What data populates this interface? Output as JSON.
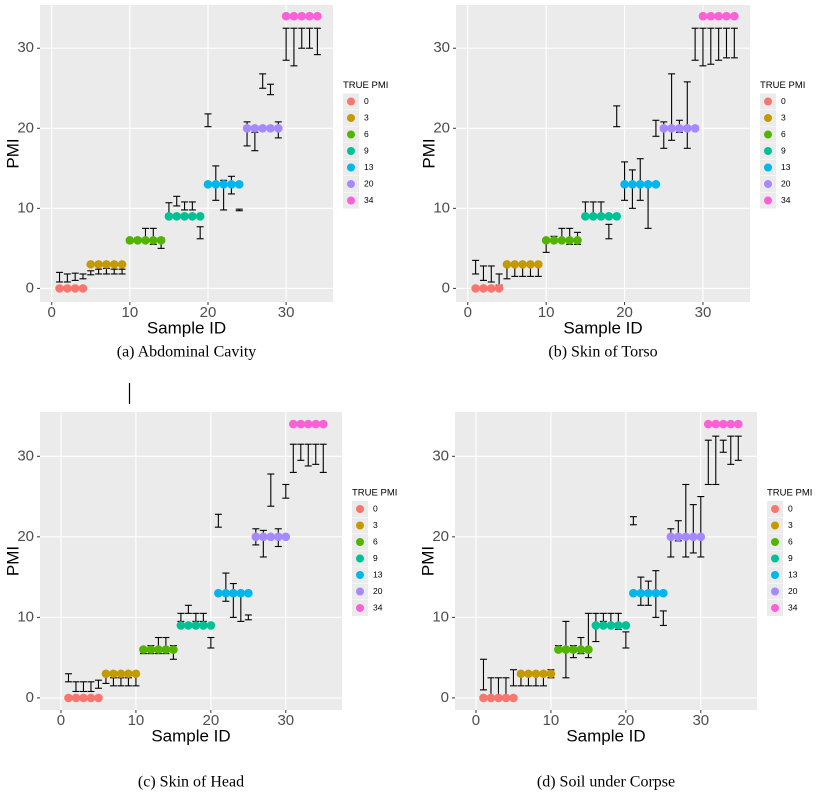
{
  "chart_data": [
    {
      "type": "errorbar-scatter",
      "caption": "(a) Abdominal Cavity",
      "xlabel": "Sample ID",
      "ylabel": "PMI",
      "legend_title": "TRUE PMI",
      "xlim": [
        -1.5,
        36
      ],
      "ylim": [
        -1.7,
        35.4
      ],
      "xticks": [
        0,
        10,
        20,
        30
      ],
      "yticks": [
        0,
        10,
        20,
        30
      ],
      "grid": true,
      "series": [
        {
          "name": "0",
          "color": "#F8766D",
          "x": [
            1,
            2,
            3,
            4
          ],
          "values": [
            0,
            0,
            0,
            0
          ]
        },
        {
          "name": "3",
          "color": "#C49A00",
          "x": [
            5,
            6,
            7,
            8,
            9
          ],
          "values": [
            3,
            3,
            3,
            3,
            3
          ]
        },
        {
          "name": "6",
          "color": "#53B400",
          "x": [
            10,
            11,
            12,
            13,
            14
          ],
          "values": [
            6,
            6,
            6,
            6,
            6
          ]
        },
        {
          "name": "9",
          "color": "#00C094",
          "x": [
            15,
            16,
            17,
            18,
            19
          ],
          "values": [
            9,
            9,
            9,
            9,
            9
          ]
        },
        {
          "name": "13",
          "color": "#00B6EB",
          "x": [
            20,
            21,
            22,
            23,
            24
          ],
          "values": [
            13,
            13,
            13,
            13,
            13
          ]
        },
        {
          "name": "20",
          "color": "#A58AFF",
          "x": [
            25,
            26,
            27,
            28,
            29
          ],
          "values": [
            20,
            20,
            20,
            20,
            20
          ]
        },
        {
          "name": "34",
          "color": "#FB61D7",
          "x": [
            30,
            31,
            32,
            33,
            34
          ],
          "values": [
            34,
            34,
            34,
            34,
            34
          ]
        }
      ],
      "errorbars": {
        "x": [
          1,
          2,
          3,
          4,
          5,
          6,
          7,
          8,
          9,
          10,
          11,
          12,
          13,
          14,
          15,
          16,
          17,
          18,
          19,
          20,
          21,
          22,
          23,
          24,
          25,
          26,
          27,
          28,
          29,
          30,
          31,
          32,
          33,
          34
        ],
        "low": [
          0.8,
          0.8,
          1.0,
          1.2,
          1.7,
          1.8,
          1.8,
          1.8,
          1.8,
          5.7,
          5.8,
          5.8,
          5.5,
          5.0,
          9.2,
          10.3,
          9.8,
          9.8,
          6.2,
          20.2,
          11.0,
          9.8,
          11.8,
          9.7,
          17.8,
          17.2,
          25.0,
          24.2,
          18.8,
          28.5,
          27.8,
          30.0,
          30.0,
          29.2
        ],
        "high": [
          2.0,
          1.8,
          1.9,
          1.8,
          2.2,
          2.4,
          2.5,
          2.4,
          2.4,
          6.2,
          6.3,
          7.5,
          7.5,
          6.3,
          10.7,
          11.5,
          10.8,
          10.8,
          7.7,
          21.8,
          15.3,
          13.5,
          14.0,
          9.9,
          20.8,
          19.5,
          26.8,
          25.5,
          20.8,
          32.5,
          32.5,
          32.5,
          32.5,
          32.5
        ]
      }
    },
    {
      "type": "errorbar-scatter",
      "caption": "(b) Skin of Torso",
      "xlabel": "Sample ID",
      "ylabel": "PMI",
      "legend_title": "TRUE PMI",
      "xlim": [
        -1.5,
        36
      ],
      "ylim": [
        -1.7,
        35.4
      ],
      "xticks": [
        0,
        10,
        20,
        30
      ],
      "yticks": [
        0,
        10,
        20,
        30
      ],
      "grid": true,
      "series": [
        {
          "name": "0",
          "color": "#F8766D",
          "x": [
            1,
            2,
            3,
            4
          ],
          "values": [
            0,
            0,
            0,
            0
          ]
        },
        {
          "name": "3",
          "color": "#C49A00",
          "x": [
            5,
            6,
            7,
            8,
            9
          ],
          "values": [
            3,
            3,
            3,
            3,
            3
          ]
        },
        {
          "name": "6",
          "color": "#53B400",
          "x": [
            10,
            11,
            12,
            13,
            14
          ],
          "values": [
            6,
            6,
            6,
            6,
            6
          ]
        },
        {
          "name": "9",
          "color": "#00C094",
          "x": [
            15,
            16,
            17,
            18,
            19
          ],
          "values": [
            9,
            9,
            9,
            9,
            9
          ]
        },
        {
          "name": "13",
          "color": "#00B6EB",
          "x": [
            20,
            21,
            22,
            23,
            24
          ],
          "values": [
            13,
            13,
            13,
            13,
            13
          ]
        },
        {
          "name": "20",
          "color": "#A58AFF",
          "x": [
            25,
            26,
            27,
            28,
            29
          ],
          "values": [
            20,
            20,
            20,
            20,
            20
          ]
        },
        {
          "name": "34",
          "color": "#FB61D7",
          "x": [
            30,
            31,
            32,
            33,
            34
          ],
          "values": [
            34,
            34,
            34,
            34,
            34
          ]
        }
      ],
      "errorbars": {
        "x": [
          1,
          2,
          3,
          4,
          5,
          6,
          7,
          8,
          9,
          10,
          11,
          12,
          13,
          14,
          15,
          16,
          17,
          18,
          19,
          20,
          21,
          22,
          23,
          24,
          25,
          26,
          27,
          28,
          29,
          30,
          31,
          32,
          33,
          34
        ],
        "low": [
          1.8,
          1.0,
          0.8,
          0.4,
          1.2,
          1.5,
          1.5,
          1.5,
          1.5,
          4.5,
          5.8,
          5.8,
          5.5,
          5.5,
          8.8,
          9.0,
          8.8,
          6.2,
          20.2,
          11.0,
          10.0,
          11.0,
          7.5,
          19.0,
          17.5,
          18.5,
          19.5,
          17.5,
          28.5,
          27.8,
          28.0,
          28.5,
          28.8,
          28.8
        ],
        "high": [
          3.5,
          2.8,
          2.8,
          1.8,
          3.0,
          3.2,
          3.0,
          3.0,
          3.0,
          6.2,
          6.5,
          7.5,
          7.5,
          7.0,
          10.8,
          10.8,
          10.8,
          8.0,
          22.8,
          15.8,
          14.8,
          16.2,
          13.0,
          21.0,
          20.8,
          26.8,
          21.0,
          25.8,
          32.5,
          32.5,
          32.5,
          32.5,
          32.5,
          32.5
        ]
      }
    },
    {
      "type": "errorbar-scatter",
      "caption": "(c) Skin of Head",
      "xlabel": "Sample ID",
      "ylabel": "PMI",
      "legend_title": "TRUE PMI",
      "xlim": [
        -2.8,
        37.5
      ],
      "ylim": [
        -1.5,
        35.5
      ],
      "xticks": [
        0,
        10,
        20,
        30
      ],
      "yticks": [
        0,
        10,
        20,
        30
      ],
      "grid": true,
      "series": [
        {
          "name": "0",
          "color": "#F8766D",
          "x": [
            1,
            2,
            3,
            4,
            5
          ],
          "values": [
            0,
            0,
            0,
            0,
            0
          ]
        },
        {
          "name": "3",
          "color": "#C49A00",
          "x": [
            6,
            7,
            8,
            9,
            10
          ],
          "values": [
            3,
            3,
            3,
            3,
            3
          ]
        },
        {
          "name": "6",
          "color": "#53B400",
          "x": [
            11,
            12,
            13,
            14,
            15
          ],
          "values": [
            6,
            6,
            6,
            6,
            6
          ]
        },
        {
          "name": "9",
          "color": "#00C094",
          "x": [
            16,
            17,
            18,
            19,
            20
          ],
          "values": [
            9,
            9,
            9,
            9,
            9
          ]
        },
        {
          "name": "13",
          "color": "#00B6EB",
          "x": [
            21,
            22,
            23,
            24,
            25
          ],
          "values": [
            13,
            13,
            13,
            13,
            13
          ]
        },
        {
          "name": "20",
          "color": "#A58AFF",
          "x": [
            26,
            27,
            28,
            29,
            30
          ],
          "values": [
            20,
            20,
            20,
            20,
            20
          ]
        },
        {
          "name": "34",
          "color": "#FB61D7",
          "x": [
            31,
            32,
            33,
            34,
            35
          ],
          "values": [
            34,
            34,
            34,
            34,
            34
          ]
        }
      ],
      "errorbars": {
        "x": [
          1,
          2,
          3,
          4,
          5,
          6,
          7,
          8,
          9,
          10,
          11,
          12,
          13,
          14,
          15,
          16,
          17,
          18,
          19,
          20,
          21,
          22,
          23,
          24,
          25,
          26,
          27,
          28,
          29,
          30,
          31,
          32,
          33,
          34,
          35
        ],
        "low": [
          2.0,
          0.8,
          0.8,
          0.8,
          1.2,
          1.8,
          1.5,
          1.5,
          1.5,
          1.5,
          5.5,
          5.5,
          5.5,
          5.5,
          4.8,
          9.5,
          10.5,
          9.5,
          9.5,
          6.2,
          21.2,
          12.0,
          10.0,
          9.5,
          9.7,
          19.0,
          17.5,
          23.8,
          18.8,
          24.8,
          28.0,
          29.5,
          28.8,
          29.0,
          28.0
        ],
        "high": [
          3.0,
          2.0,
          2.0,
          2.0,
          2.2,
          2.8,
          2.5,
          2.5,
          2.5,
          2.8,
          6.2,
          6.5,
          7.5,
          7.5,
          6.5,
          10.5,
          11.5,
          10.5,
          10.5,
          7.5,
          22.8,
          15.5,
          14.2,
          13.0,
          10.3,
          21.0,
          20.8,
          27.8,
          21.0,
          26.5,
          31.5,
          31.5,
          31.5,
          31.5,
          31.5
        ]
      }
    },
    {
      "type": "errorbar-scatter",
      "caption": "(d) Soil under Corpse",
      "xlabel": "Sample ID",
      "ylabel": "PMI",
      "legend_title": "TRUE PMI",
      "xlim": [
        -2.8,
        37.5
      ],
      "ylim": [
        -1.5,
        35.5
      ],
      "xticks": [
        0,
        10,
        20,
        30
      ],
      "yticks": [
        0,
        10,
        20,
        30
      ],
      "grid": true,
      "series": [
        {
          "name": "0",
          "color": "#F8766D",
          "x": [
            1,
            2,
            3,
            4,
            5
          ],
          "values": [
            0,
            0,
            0,
            0,
            0
          ]
        },
        {
          "name": "3",
          "color": "#C49A00",
          "x": [
            6,
            7,
            8,
            9,
            10
          ],
          "values": [
            3,
            3,
            3,
            3,
            3
          ]
        },
        {
          "name": "6",
          "color": "#53B400",
          "x": [
            11,
            12,
            13,
            14,
            15
          ],
          "values": [
            6,
            6,
            6,
            6,
            6
          ]
        },
        {
          "name": "9",
          "color": "#00C094",
          "x": [
            16,
            17,
            18,
            19,
            20
          ],
          "values": [
            9,
            9,
            9,
            9,
            9
          ]
        },
        {
          "name": "13",
          "color": "#00B6EB",
          "x": [
            21,
            22,
            23,
            24,
            25
          ],
          "values": [
            13,
            13,
            13,
            13,
            13
          ]
        },
        {
          "name": "20",
          "color": "#A58AFF",
          "x": [
            26,
            27,
            28,
            29,
            30
          ],
          "values": [
            20,
            20,
            20,
            20,
            20
          ]
        },
        {
          "name": "34",
          "color": "#FB61D7",
          "x": [
            31,
            32,
            33,
            34,
            35
          ],
          "values": [
            34,
            34,
            34,
            34,
            34
          ]
        }
      ],
      "errorbars": {
        "x": [
          1,
          2,
          3,
          4,
          5,
          6,
          7,
          8,
          9,
          10,
          11,
          12,
          13,
          14,
          15,
          16,
          17,
          18,
          19,
          20,
          21,
          22,
          23,
          24,
          25,
          26,
          27,
          28,
          29,
          30,
          31,
          32,
          33,
          34,
          35
        ],
        "low": [
          1.0,
          0.2,
          0.2,
          0.2,
          1.5,
          1.5,
          1.5,
          1.5,
          1.5,
          2.5,
          5.8,
          2.5,
          5.0,
          5.5,
          5.0,
          7.0,
          9.5,
          9.0,
          8.5,
          6.2,
          21.5,
          11.5,
          11.5,
          10.0,
          9.0,
          17.5,
          19.5,
          17.5,
          18.0,
          17.5,
          26.5,
          26.5,
          30.5,
          29.0,
          29.5
        ],
        "high": [
          4.8,
          2.5,
          2.5,
          2.5,
          3.5,
          3.2,
          3.2,
          3.2,
          3.2,
          3.5,
          6.5,
          9.5,
          6.5,
          7.5,
          10.5,
          10.5,
          10.5,
          10.5,
          10.5,
          8.2,
          22.5,
          15.0,
          14.5,
          15.8,
          10.8,
          21.0,
          22.0,
          26.5,
          24.0,
          25.0,
          32.0,
          32.5,
          32.0,
          32.5,
          32.5
        ]
      }
    }
  ]
}
